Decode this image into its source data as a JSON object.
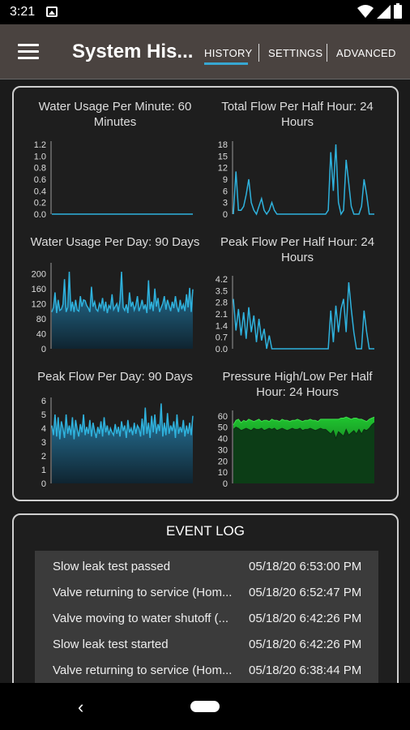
{
  "status_bar": {
    "time": "3:21",
    "icons": [
      "image-icon",
      "wifi-icon",
      "signal-icon",
      "battery-icon"
    ]
  },
  "app_bar": {
    "title": "System His...",
    "tabs": [
      {
        "label": "HISTORY",
        "active": true
      },
      {
        "label": "SETTINGS",
        "active": false
      },
      {
        "label": "ADVANCED",
        "active": false
      }
    ]
  },
  "colors": {
    "accent": "#37a7d2",
    "line": "#2fb2dd",
    "pressure": "#22b53a",
    "appbar": "#4a4340"
  },
  "chart_data": [
    {
      "id": "water_usage_per_minute",
      "type": "line",
      "title": "Water Usage Per Minute: 60 Minutes",
      "yticks": [
        "1.2",
        "1.0",
        "0.8",
        "0.6",
        "0.4",
        "0.2",
        "0.0"
      ],
      "ylim": [
        0,
        1.2
      ],
      "fill": false,
      "values": [
        0,
        0,
        0,
        0,
        0,
        0,
        0,
        0,
        0,
        0,
        0,
        0,
        0,
        0,
        0,
        0,
        0,
        0,
        0,
        0,
        0,
        0,
        0,
        0,
        0,
        0,
        0,
        0,
        0,
        0,
        0,
        0,
        0,
        0,
        0,
        0,
        0,
        0,
        0,
        0,
        0,
        0,
        0,
        0,
        0,
        0,
        0,
        0,
        0,
        0,
        0,
        0,
        0,
        0,
        0,
        0,
        0,
        0,
        0,
        0
      ]
    },
    {
      "id": "total_flow_per_half_hour",
      "type": "line",
      "title": "Total Flow Per Half Hour: 24 Hours",
      "yticks": [
        "18",
        "15",
        "12",
        "9",
        "6",
        "3",
        "0"
      ],
      "ylim": [
        0,
        18
      ],
      "fill": false,
      "values": [
        0,
        11,
        1,
        1,
        2,
        5,
        9,
        3,
        1,
        0,
        2,
        4,
        1,
        0,
        1,
        3,
        1,
        0,
        0,
        0,
        0,
        0,
        0,
        0,
        0,
        0,
        0,
        0,
        0,
        0,
        0,
        0,
        0,
        0,
        0,
        0,
        0,
        1,
        16,
        6,
        18,
        3,
        0,
        1,
        14,
        8,
        2,
        0,
        0,
        0,
        2,
        9,
        5,
        0,
        0,
        0
      ]
    },
    {
      "id": "water_usage_per_day",
      "type": "area",
      "title": "Water Usage Per Day: 90 Days",
      "yticks": [
        "200",
        "160",
        "120",
        "80",
        "40",
        "0"
      ],
      "ylim": [
        0,
        220
      ],
      "fill": true,
      "values": [
        98,
        110,
        150,
        95,
        130,
        102,
        105,
        118,
        185,
        98,
        110,
        205,
        100,
        125,
        98,
        130,
        103,
        100,
        140,
        112,
        130,
        128,
        115,
        108,
        98,
        165,
        112,
        125,
        105,
        100,
        120,
        110,
        135,
        100,
        125,
        95,
        115,
        108,
        145,
        104,
        112,
        120,
        98,
        130,
        205,
        110,
        102,
        118,
        95,
        150,
        112,
        125,
        103,
        115,
        140,
        100,
        112,
        130,
        105,
        118,
        95,
        182,
        105,
        125,
        100,
        160,
        112,
        135,
        98,
        110,
        120,
        140,
        104,
        130,
        115,
        100,
        125,
        108,
        140,
        112,
        98,
        130,
        105,
        118,
        100,
        145,
        110,
        162,
        98,
        158
      ]
    },
    {
      "id": "peak_flow_per_half_hour",
      "type": "line",
      "title": "Peak Flow Per Half Hour: 24 Hours",
      "yticks": [
        "4.2",
        "3.5",
        "2.8",
        "2.1",
        "1.4",
        "0.7",
        "0.0"
      ],
      "ylim": [
        0,
        4.2
      ],
      "fill": false,
      "values": [
        3.0,
        1.1,
        2.4,
        0.8,
        2.2,
        0.6,
        2.5,
        1.0,
        2.0,
        0.4,
        1.8,
        0.5,
        1.2,
        0.0,
        0.8,
        0.0,
        0.0,
        0.0,
        0.0,
        0.0,
        0.0,
        0.0,
        0.0,
        0.0,
        0.0,
        0.0,
        0.0,
        0.0,
        0.0,
        0.0,
        0.0,
        0.0,
        0.0,
        0.0,
        0.0,
        0.0,
        0.0,
        0.0,
        2.3,
        0.4,
        2.6,
        1.0,
        2.4,
        3.0,
        1.0,
        4.0,
        2.4,
        1.0,
        0.0,
        0.0,
        0.0,
        2.3,
        1.0,
        0.0,
        0.0,
        0.0
      ]
    },
    {
      "id": "peak_flow_per_day",
      "type": "area",
      "title": "Peak Flow Per Day: 90 Days",
      "yticks": [
        "6",
        "5",
        "4",
        "3",
        "2",
        "1",
        "0"
      ],
      "ylim": [
        0,
        6
      ],
      "fill": true,
      "values": [
        4.2,
        3.5,
        5.0,
        3.4,
        4.8,
        3.2,
        4.5,
        4.0,
        3.3,
        5.0,
        3.6,
        4.2,
        3.5,
        4.8,
        3.2,
        4.6,
        3.9,
        3.4,
        4.3,
        3.7,
        5.0,
        3.5,
        4.1,
        3.6,
        4.6,
        3.4,
        4.4,
        3.8,
        3.3,
        4.1,
        3.6,
        4.5,
        3.4,
        4.8,
        3.7,
        4.2,
        3.5,
        4.0,
        3.7,
        3.5,
        4.3,
        3.6,
        4.1,
        3.4,
        4.5,
        3.8,
        4.2,
        3.3,
        4.6,
        3.7,
        4.0,
        3.5,
        4.4,
        3.6,
        4.2,
        4.0,
        3.4,
        4.7,
        3.5,
        5.5,
        3.6,
        4.4,
        3.3,
        4.9,
        3.7,
        5.0,
        3.6,
        4.3,
        3.8,
        5.8,
        3.4,
        4.4,
        3.5,
        5.1,
        3.6,
        4.2,
        3.8,
        4.5,
        3.3,
        5.0,
        3.6,
        4.1,
        3.7,
        4.6,
        3.4,
        4.2,
        3.6,
        4.4,
        3.5,
        4.9
      ]
    },
    {
      "id": "pressure_high_low",
      "type": "area",
      "title": "Pressure High/Low Per Half Hour: 24 Hours",
      "yticks": [
        "60",
        "50",
        "40",
        "30",
        "20",
        "10",
        "0"
      ],
      "ylim": [
        0,
        62
      ],
      "fill": true,
      "series": [
        {
          "values": [
            52,
            56,
            57,
            54,
            56,
            55,
            57,
            56,
            55,
            56,
            57,
            55,
            56,
            56,
            55,
            57,
            56,
            56,
            55,
            57,
            56,
            56,
            55,
            56,
            56,
            57,
            56,
            55,
            56,
            56,
            57,
            56,
            56,
            55,
            57,
            57,
            57,
            57,
            57,
            57,
            57,
            57,
            58,
            58,
            59,
            58,
            57,
            58,
            58,
            57,
            57,
            56,
            55,
            57,
            58,
            59
          ]
        },
        {
          "values": [
            48,
            50,
            49,
            47,
            48,
            49,
            48,
            47,
            49,
            48,
            48,
            49,
            47,
            48,
            49,
            48,
            49,
            47,
            48,
            49,
            48,
            47,
            48,
            49,
            48,
            48,
            49,
            47,
            48,
            48,
            49,
            48,
            47,
            48,
            49,
            48,
            48,
            46,
            44,
            47,
            40,
            46,
            44,
            42,
            48,
            43,
            45,
            47,
            44,
            48,
            44,
            48,
            47,
            49,
            52,
            54
          ]
        }
      ]
    }
  ],
  "event_log": {
    "title": "EVENT LOG",
    "rows": [
      {
        "message": "Slow leak test passed",
        "time": "05/18/20 6:53:00 PM"
      },
      {
        "message": "Valve returning to service (Hom...",
        "time": "05/18/20 6:52:47 PM"
      },
      {
        "message": "Valve moving to water shutoff (...",
        "time": "05/18/20 6:42:26 PM"
      },
      {
        "message": "Slow leak test started",
        "time": "05/18/20 6:42:26 PM"
      },
      {
        "message": "Valve returning to service (Hom...",
        "time": "05/18/20 6:38:44 PM"
      },
      {
        "message": "",
        "time": ""
      }
    ]
  },
  "nav_bar": {
    "back_icon": "back-icon",
    "home_icon": "home-icon"
  }
}
